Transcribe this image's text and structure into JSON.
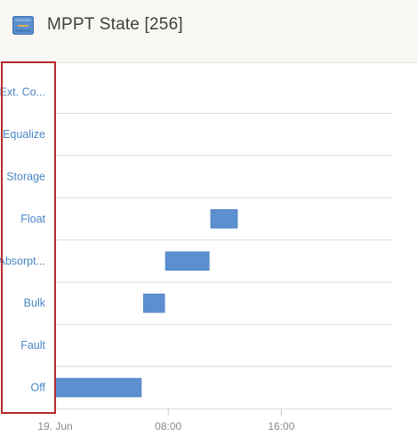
{
  "header": {
    "title": "MPPT State [256]",
    "icon": "battery-charger-icon"
  },
  "colors": {
    "bar": "#5b8fcf",
    "category_text": "#4a86c3",
    "highlight_box": "#b52a2a",
    "grid": "#dcdcdc"
  },
  "chart_data": {
    "type": "timeline",
    "title": "MPPT State [256]",
    "categories": [
      "Ext. Co...",
      "Equalize",
      "Storage",
      "Float",
      "Absorpt...",
      "Bulk",
      "Fault",
      "Off"
    ],
    "x_ticks": [
      {
        "label": "19. Jun",
        "hour": 0
      },
      {
        "label": "08:00",
        "hour": 8
      },
      {
        "label": "16:00",
        "hour": 16
      }
    ],
    "xlim_hours": [
      0,
      24
    ],
    "intervals": [
      {
        "state": "Off",
        "start_hour": 0.0,
        "end_hour": 6.1
      },
      {
        "state": "Bulk",
        "start_hour": 6.25,
        "end_hour": 7.75
      },
      {
        "state": "Absorpt...",
        "start_hour": 7.8,
        "end_hour": 10.9
      },
      {
        "state": "Float",
        "start_hour": 11.0,
        "end_hour": 12.9
      }
    ],
    "grid": true,
    "category_axis_highlighted": true
  }
}
